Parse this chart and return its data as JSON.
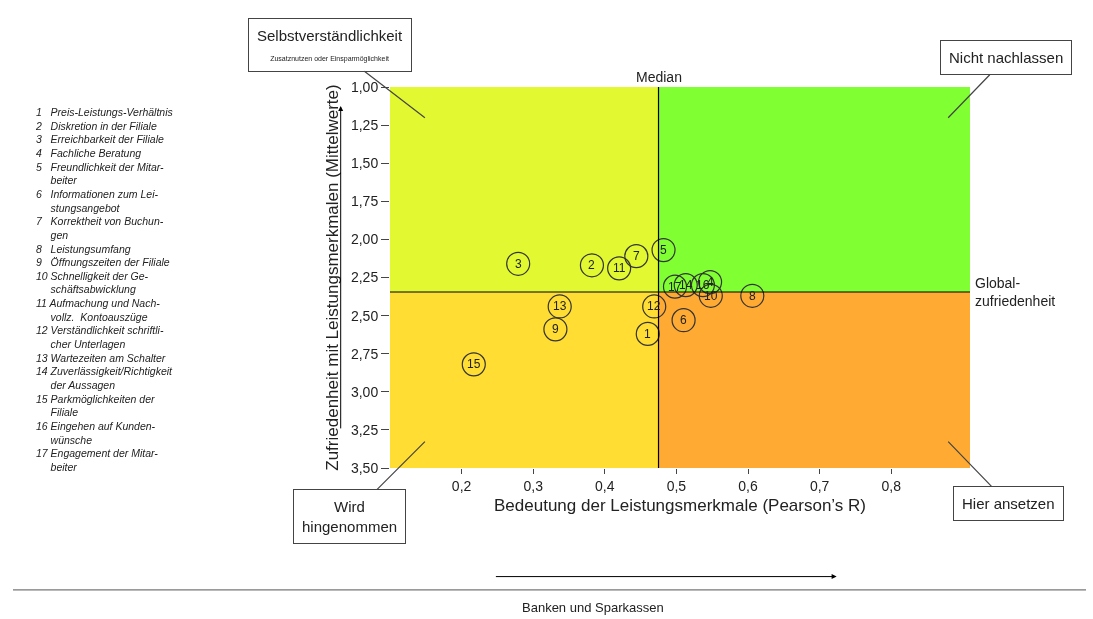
{
  "chart_data": {
    "type": "scatter",
    "xlabel": "Bedeutung der Leistungsmerkmale (Pearson’s R)",
    "ylabel": "Zufriedenheit mit Leistungsmerkmalen (Mittelwerte)",
    "x": [
      0.46,
      0.382,
      0.279,
      0.547,
      0.482,
      0.51,
      0.444,
      0.606,
      0.331,
      0.548,
      0.42,
      0.469,
      0.337,
      0.513,
      0.217,
      0.537,
      0.498
    ],
    "series": [
      {
        "color": "#333333",
        "values": [
          2.62,
          2.17,
          2.16,
          2.28,
          2.07,
          2.53,
          2.11,
          2.37,
          2.59,
          2.37,
          2.19,
          2.44,
          2.44,
          2.3,
          2.82,
          2.3,
          2.31
        ]
      }
    ],
    "marker": "circle",
    "xlim": [
      0.1,
      0.91
    ],
    "xticks": [
      {
        "value": 0.2,
        "label": "0,2"
      },
      {
        "value": 0.3,
        "label": "0,3"
      },
      {
        "value": 0.4,
        "label": "0,4"
      },
      {
        "value": 0.5,
        "label": "0,5"
      },
      {
        "value": 0.6,
        "label": "0,6"
      },
      {
        "value": 0.7,
        "label": "0,7"
      },
      {
        "value": 0.8,
        "label": "0,8"
      }
    ],
    "ylim": [
      3.5,
      1.0
    ],
    "yticks": [
      {
        "value": 1.0,
        "label": "1,00"
      },
      {
        "value": 1.25,
        "label": "1,25"
      },
      {
        "value": 1.5,
        "label": "1,50"
      },
      {
        "value": 1.75,
        "label": "1,75"
      },
      {
        "value": 2.0,
        "label": "2,00"
      },
      {
        "value": 2.25,
        "label": "2,25"
      },
      {
        "value": 2.5,
        "label": "2,50"
      },
      {
        "value": 2.75,
        "label": "2,75"
      },
      {
        "value": 3.0,
        "label": "3,00"
      },
      {
        "value": 3.25,
        "label": "3,25"
      },
      {
        "value": 3.5,
        "label": "3,50"
      }
    ],
    "grid": false,
    "ref_lines": [
      {
        "axis": "x",
        "value": 0.475,
        "label": "Median",
        "color": "#000000"
      },
      {
        "axis": "y",
        "value": 2.345,
        "label": "Global-\nzufriedenheit",
        "color": "#000000"
      }
    ],
    "bands": [
      {
        "axis": "x",
        "from": 0.1,
        "to": 0.475,
        "color": "#e2f830",
        "label": "Selbstverständlichkeit\nZusatznutzen oder Einsparmöglichkeit"
      },
      {
        "axis": "x",
        "from": 0.475,
        "to": 0.91,
        "color": "#80ff33",
        "label": "Nicht nachlassen"
      },
      {
        "axis": "x",
        "from": 0.1,
        "to": 0.475,
        "color": "#ffdd33",
        "label": "Wird\nhingenommen"
      },
      {
        "axis": "x",
        "from": 0.475,
        "to": 0.91,
        "color": "#ffaa33",
        "label": "Hier ansetzen"
      }
    ],
    "annotations": [
      {
        "text": "1",
        "x": 0.46,
        "y": 2.62
      },
      {
        "text": "2",
        "x": 0.382,
        "y": 2.17
      },
      {
        "text": "3",
        "x": 0.279,
        "y": 2.16
      },
      {
        "text": "4",
        "x": 0.547,
        "y": 2.28
      },
      {
        "text": "5",
        "x": 0.482,
        "y": 2.07
      },
      {
        "text": "6",
        "x": 0.51,
        "y": 2.53
      },
      {
        "text": "7",
        "x": 0.444,
        "y": 2.11
      },
      {
        "text": "8",
        "x": 0.606,
        "y": 2.37
      },
      {
        "text": "9",
        "x": 0.331,
        "y": 2.59
      },
      {
        "text": "10",
        "x": 0.548,
        "y": 2.37
      },
      {
        "text": "11",
        "x": 0.42,
        "y": 2.19
      },
      {
        "text": "12",
        "x": 0.469,
        "y": 2.44
      },
      {
        "text": "13",
        "x": 0.337,
        "y": 2.44
      },
      {
        "text": "14",
        "x": 0.513,
        "y": 2.3
      },
      {
        "text": "15",
        "x": 0.217,
        "y": 2.82
      },
      {
        "text": "16",
        "x": 0.537,
        "y": 2.3
      },
      {
        "text": "17",
        "x": 0.498,
        "y": 2.31
      },
      "1   Preis-Leistungs-Verhältnis\n2   Diskretion in der Filiale\n3   Erreichbarkeit der Filiale\n4   Fachliche Beratung\n5   Freundlichkeit der Mitar-\n     beiter\n6   Informationen zum Lei-\n     stungsangebot\n7   Korrektheit von Buchun-\n     gen\n8   Leistungsumfang\n9   Öffnungszeiten der Filiale\n10 Schnelligkeit der Ge-\n     schäftsabwicklung\n11 Aufmachung und Nach-\n     vollz.  Kontoauszüge\n12 Verständlichkeit schriftli-\n     cher Unterlagen\n13 Wartezeiten am Schalter\n14 Zuverlässigkeit/Richtigkeit\n     der Aussagen\n15 Parkmöglichkeiten der\n     Filiale\n16 Eingehen auf Kunden-\n     wünsche\n17 Engagement der Mitar-\n     beiter",
      "Banken und Sparkassen"
    ]
  }
}
